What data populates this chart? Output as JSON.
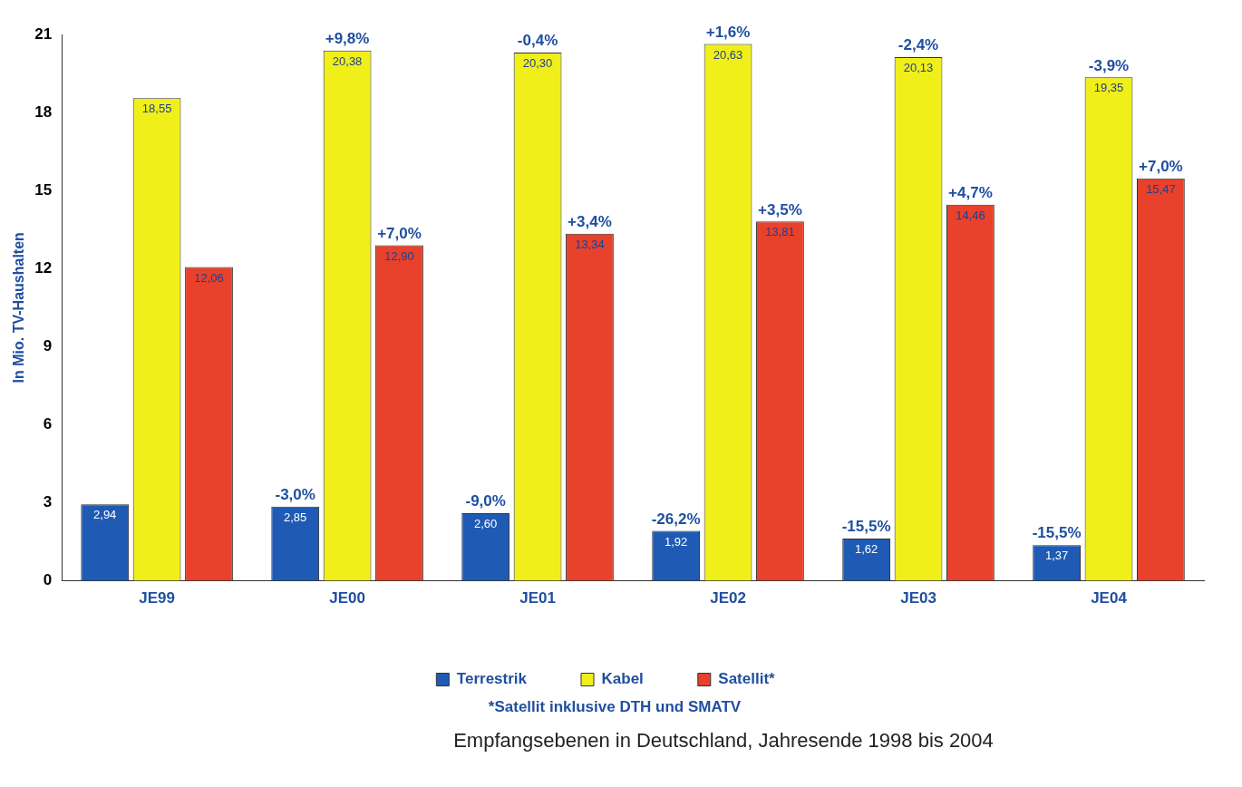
{
  "chart_data": {
    "type": "bar",
    "ylabel": "In Mio. TV-Haushalten",
    "categories": [
      "JE99",
      "JE00",
      "JE01",
      "JE02",
      "JE03",
      "JE04"
    ],
    "series": [
      {
        "name": "Terrestrik",
        "color": "#1f5bb5",
        "values": [
          2.94,
          2.85,
          2.6,
          1.92,
          1.62,
          1.37
        ],
        "value_labels": [
          "2,94",
          "2,85",
          "2,60",
          "1,92",
          "1,62",
          "1,37"
        ]
      },
      {
        "name": "Kabel",
        "color": "#f0ef1a",
        "values": [
          18.55,
          20.38,
          20.3,
          20.63,
          20.13,
          19.35
        ],
        "value_labels": [
          "18,55",
          "20,38",
          "20,30",
          "20,63",
          "20,13",
          "19,35"
        ]
      },
      {
        "name": "Satellit*",
        "color": "#e8412c",
        "values": [
          12.06,
          12.9,
          13.34,
          13.81,
          14.46,
          15.47
        ],
        "value_labels": [
          "12,06",
          "12,90",
          "13,34",
          "13,81",
          "14,46",
          "15,47"
        ]
      }
    ],
    "ylim": [
      0,
      21
    ],
    "yticks": [
      0,
      3,
      6,
      9,
      12,
      15,
      18,
      21
    ],
    "grid": false,
    "legend": "bottom",
    "annotations": [
      "-3,0%",
      "-9,0%",
      "-26,2%",
      "-15,5%",
      "-15,5%",
      "+9,8%",
      "-0,4%",
      "+1,6%",
      "-2,4%",
      "-3,9%",
      "+7,0%",
      "+3,4%",
      "+3,5%",
      "+4,7%",
      "+7,0%",
      "*Satellit inklusive DTH und SMATV",
      "Empfangsebenen in Deutschland, Jahresende 1998 bis 2004"
    ]
  }
}
